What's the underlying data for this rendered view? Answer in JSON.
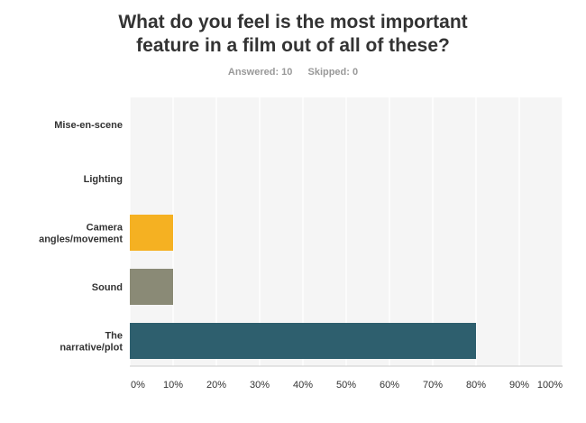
{
  "header": {
    "title_line1": "What do you feel is the most important",
    "title_line2": "feature in a film out of all of these?",
    "answered": "Answered: 10",
    "skipped": "Skipped: 0"
  },
  "chart_data": {
    "type": "bar",
    "orientation": "horizontal",
    "categories": [
      [
        "Mise-en-scene"
      ],
      [
        "Lighting"
      ],
      [
        "Camera",
        "angles/movement"
      ],
      [
        "Sound"
      ],
      [
        "The",
        "narrative/plot"
      ]
    ],
    "values": [
      0,
      0,
      10,
      10,
      80
    ],
    "colors": [
      "#5b9bd5",
      "#8cc63f",
      "#f5b122",
      "#8a8a76",
      "#2e5f6e"
    ],
    "xlim": [
      0,
      100
    ],
    "ticks": [
      "0%",
      "10%",
      "20%",
      "30%",
      "40%",
      "50%",
      "60%",
      "70%",
      "80%",
      "90%",
      "100%"
    ],
    "grid": true
  }
}
